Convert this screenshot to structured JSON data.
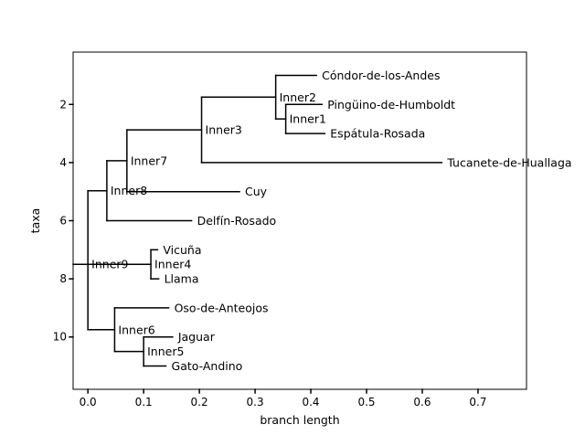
{
  "chart_data": {
    "type": "tree",
    "xlabel": "branch length",
    "ylabel": "taxa",
    "xlim": [
      -0.0265,
      0.787
    ],
    "ylim": [
      11.8,
      0.2
    ],
    "xticks": [
      0.0,
      0.1,
      0.2,
      0.3,
      0.4,
      0.5,
      0.6,
      0.7
    ],
    "xtick_labels": [
      "0.0",
      "0.1",
      "0.2",
      "0.3",
      "0.4",
      "0.5",
      "0.6",
      "0.7"
    ],
    "yticks": [
      2,
      4,
      6,
      8,
      10
    ],
    "ytick_labels": [
      "2",
      "4",
      "6",
      "8",
      "10"
    ],
    "grid": false,
    "line_color": "#000000",
    "leaves": [
      {
        "name": "Cóndor-de-los-Andes",
        "x": 0.41,
        "y": 1
      },
      {
        "name": "Pingüino-de-Humboldt",
        "x": 0.42,
        "y": 2
      },
      {
        "name": "Espátula-Rosada",
        "x": 0.425,
        "y": 3
      },
      {
        "name": "Tucanete-de-Huallaga",
        "x": 0.635,
        "y": 4
      },
      {
        "name": "Cuy",
        "x": 0.272,
        "y": 5
      },
      {
        "name": "Delfín-Rosado",
        "x": 0.186,
        "y": 6
      },
      {
        "name": "Vicuña",
        "x": 0.125,
        "y": 7
      },
      {
        "name": "Llama",
        "x": 0.127,
        "y": 8
      },
      {
        "name": "Oso-de-Anteojos",
        "x": 0.145,
        "y": 9
      },
      {
        "name": "Jaguar",
        "x": 0.152,
        "y": 10
      },
      {
        "name": "Gato-Andino",
        "x": 0.14,
        "y": 11
      }
    ],
    "inner_nodes": [
      {
        "name": "Inner1",
        "x": 0.355,
        "y": 2.5,
        "children": [
          "Pingüino-de-Humboldt",
          "Espátula-Rosada"
        ]
      },
      {
        "name": "Inner2",
        "x": 0.337,
        "y": 1.75,
        "children": [
          "Cóndor-de-los-Andes",
          "Inner1"
        ]
      },
      {
        "name": "Inner3",
        "x": 0.204,
        "y": 2.875,
        "children": [
          "Inner2",
          "Tucanete-de-Huallaga"
        ]
      },
      {
        "name": "Inner7",
        "x": 0.07,
        "y": 3.9375,
        "children": [
          "Inner3",
          "Cuy"
        ]
      },
      {
        "name": "Inner8",
        "x": 0.034,
        "y": 4.96875,
        "children": [
          "Inner7",
          "Delfín-Rosado"
        ]
      },
      {
        "name": "Inner4",
        "x": 0.113,
        "y": 7.5,
        "children": [
          "Vicuña",
          "Llama"
        ]
      },
      {
        "name": "Inner5",
        "x": 0.1,
        "y": 10.5,
        "children": [
          "Jaguar",
          "Gato-Andino"
        ]
      },
      {
        "name": "Inner6",
        "x": 0.048,
        "y": 9.75,
        "children": [
          "Oso-de-Anteojos",
          "Inner5"
        ]
      },
      {
        "name": "Inner9",
        "x": 0.0,
        "y": 7.5,
        "children": [
          "Inner8",
          "Inner4",
          "Inner6"
        ]
      }
    ]
  }
}
